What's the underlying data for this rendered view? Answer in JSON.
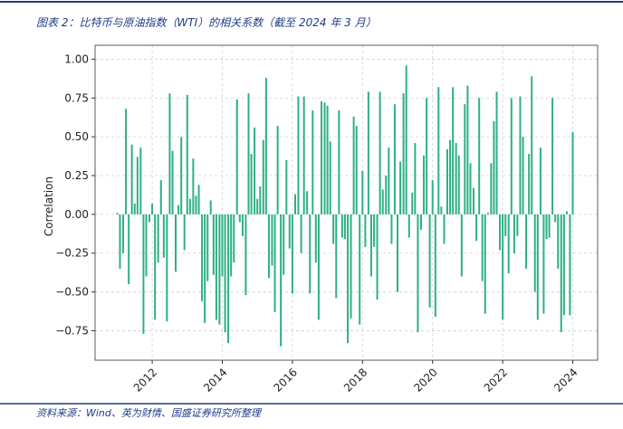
{
  "chart_data": {
    "type": "bar",
    "title": "图表 2：比特币与原油指数（WTI）的相关系数（截至 2024 年 3 月）",
    "y_label": "Correlation",
    "source": "资料来源：Wind、英为财情、国盛证券研究所整理",
    "color": "#2eb082",
    "grid": true,
    "xlim": [
      2010.37,
      2024.71
    ],
    "xticks": [
      2012,
      2014,
      2016,
      2018,
      2020,
      2022,
      2024
    ],
    "ylim": [
      -0.94,
      1.09
    ],
    "yticks": [
      {
        "value": 1,
        "label": "1.00"
      },
      {
        "value": 0.75,
        "label": "0.75"
      },
      {
        "value": 0.5,
        "label": "0.50"
      },
      {
        "value": 0.25,
        "label": "0.25"
      },
      {
        "value": 0,
        "label": "0.00"
      },
      {
        "value": -0.25,
        "label": "−0.25"
      },
      {
        "value": -0.5,
        "label": "−0.50"
      },
      {
        "value": -0.75,
        "label": "−0.75"
      }
    ],
    "x": [
      2011,
      2011.08,
      2011.17,
      2011.25,
      2011.33,
      2011.42,
      2011.5,
      2011.58,
      2011.67,
      2011.75,
      2011.83,
      2011.92,
      2012,
      2012.08,
      2012.17,
      2012.25,
      2012.33,
      2012.42,
      2012.5,
      2012.58,
      2012.67,
      2012.75,
      2012.83,
      2012.92,
      2013,
      2013.08,
      2013.17,
      2013.25,
      2013.33,
      2013.42,
      2013.5,
      2013.58,
      2013.67,
      2013.75,
      2013.83,
      2013.92,
      2014,
      2014.08,
      2014.17,
      2014.25,
      2014.33,
      2014.42,
      2014.5,
      2014.58,
      2014.67,
      2014.75,
      2014.83,
      2014.92,
      2015,
      2015.08,
      2015.17,
      2015.25,
      2015.33,
      2015.42,
      2015.5,
      2015.58,
      2015.67,
      2015.75,
      2015.83,
      2015.92,
      2016,
      2016.08,
      2016.17,
      2016.25,
      2016.33,
      2016.42,
      2016.5,
      2016.58,
      2016.67,
      2016.75,
      2016.83,
      2016.92,
      2017,
      2017.08,
      2017.17,
      2017.25,
      2017.33,
      2017.42,
      2017.5,
      2017.58,
      2017.67,
      2017.75,
      2017.83,
      2017.92,
      2018,
      2018.08,
      2018.17,
      2018.25,
      2018.33,
      2018.42,
      2018.5,
      2018.58,
      2018.67,
      2018.75,
      2018.83,
      2018.92,
      2019,
      2019.08,
      2019.17,
      2019.25,
      2019.33,
      2019.42,
      2019.5,
      2019.58,
      2019.67,
      2019.75,
      2019.83,
      2019.92,
      2020,
      2020.08,
      2020.17,
      2020.25,
      2020.33,
      2020.42,
      2020.5,
      2020.58,
      2020.67,
      2020.75,
      2020.83,
      2020.92,
      2021,
      2021.08,
      2021.17,
      2021.25,
      2021.33,
      2021.42,
      2021.5,
      2021.58,
      2021.67,
      2021.75,
      2021.83,
      2021.92,
      2022,
      2022.08,
      2022.17,
      2022.25,
      2022.33,
      2022.42,
      2022.5,
      2022.58,
      2022.67,
      2022.75,
      2022.83,
      2022.92,
      2023,
      2023.08,
      2023.17,
      2023.25,
      2023.33,
      2023.42,
      2023.5,
      2023.58,
      2023.67,
      2023.75,
      2023.83,
      2023.92,
      2024
    ],
    "values": [
      0.01,
      -0.35,
      -0.25,
      0.68,
      -0.45,
      0.45,
      0.07,
      0.37,
      0.43,
      -0.77,
      -0.4,
      -0.05,
      0.07,
      -0.68,
      -0.31,
      0.22,
      -0.28,
      -0.69,
      0.78,
      0.41,
      -0.37,
      0.06,
      0.5,
      -0.23,
      0.77,
      0.1,
      0.36,
      0.12,
      0.19,
      -0.56,
      -0.7,
      -0.43,
      0.09,
      -0.39,
      -0.68,
      -0.71,
      -0.4,
      -0.76,
      -0.83,
      -0.4,
      -0.31,
      0.74,
      -0.05,
      -0.14,
      -0.52,
      0.78,
      0.39,
      0.56,
      0.1,
      0.18,
      0.48,
      0.88,
      -0.41,
      -0.33,
      -0.63,
      0.57,
      -0.85,
      -0.39,
      0.35,
      -0.22,
      -0.51,
      0.13,
      0.76,
      -0.25,
      0.76,
      0.15,
      -0.51,
      0.67,
      -0.31,
      -0.68,
      0.73,
      0.72,
      0.7,
      0.47,
      -0.19,
      -0.54,
      0.67,
      -0.15,
      -0.16,
      -0.83,
      -0.67,
      0.63,
      0.57,
      -0.71,
      0.28,
      -0.21,
      0.79,
      -0.4,
      -0.21,
      -0.55,
      0.79,
      0.16,
      0.25,
      0.43,
      -0.19,
      0.71,
      -0.5,
      0.34,
      0.78,
      0.96,
      -0.15,
      0.14,
      0.46,
      -0.76,
      -0.1,
      0.38,
      0.75,
      -0.6,
      0.22,
      -0.66,
      0.82,
      0.05,
      -0.19,
      0.42,
      0.48,
      0.82,
      0.46,
      0.38,
      -0.4,
      0.71,
      0.83,
      0.33,
      0.17,
      -0.17,
      0.75,
      -0.43,
      -0.64,
      0.01,
      0.33,
      0.6,
      0.79,
      -0.23,
      -0.68,
      -0.14,
      -0.38,
      0.75,
      -0.25,
      -0.14,
      0.76,
      0.5,
      -0.35,
      0.39,
      0.89,
      -0.5,
      -0.68,
      0.43,
      -0.64,
      -0.16,
      -0.15,
      0.75,
      -0.05,
      -0.35,
      -0.76,
      -0.65,
      0.02,
      -0.65,
      0.53
    ]
  }
}
